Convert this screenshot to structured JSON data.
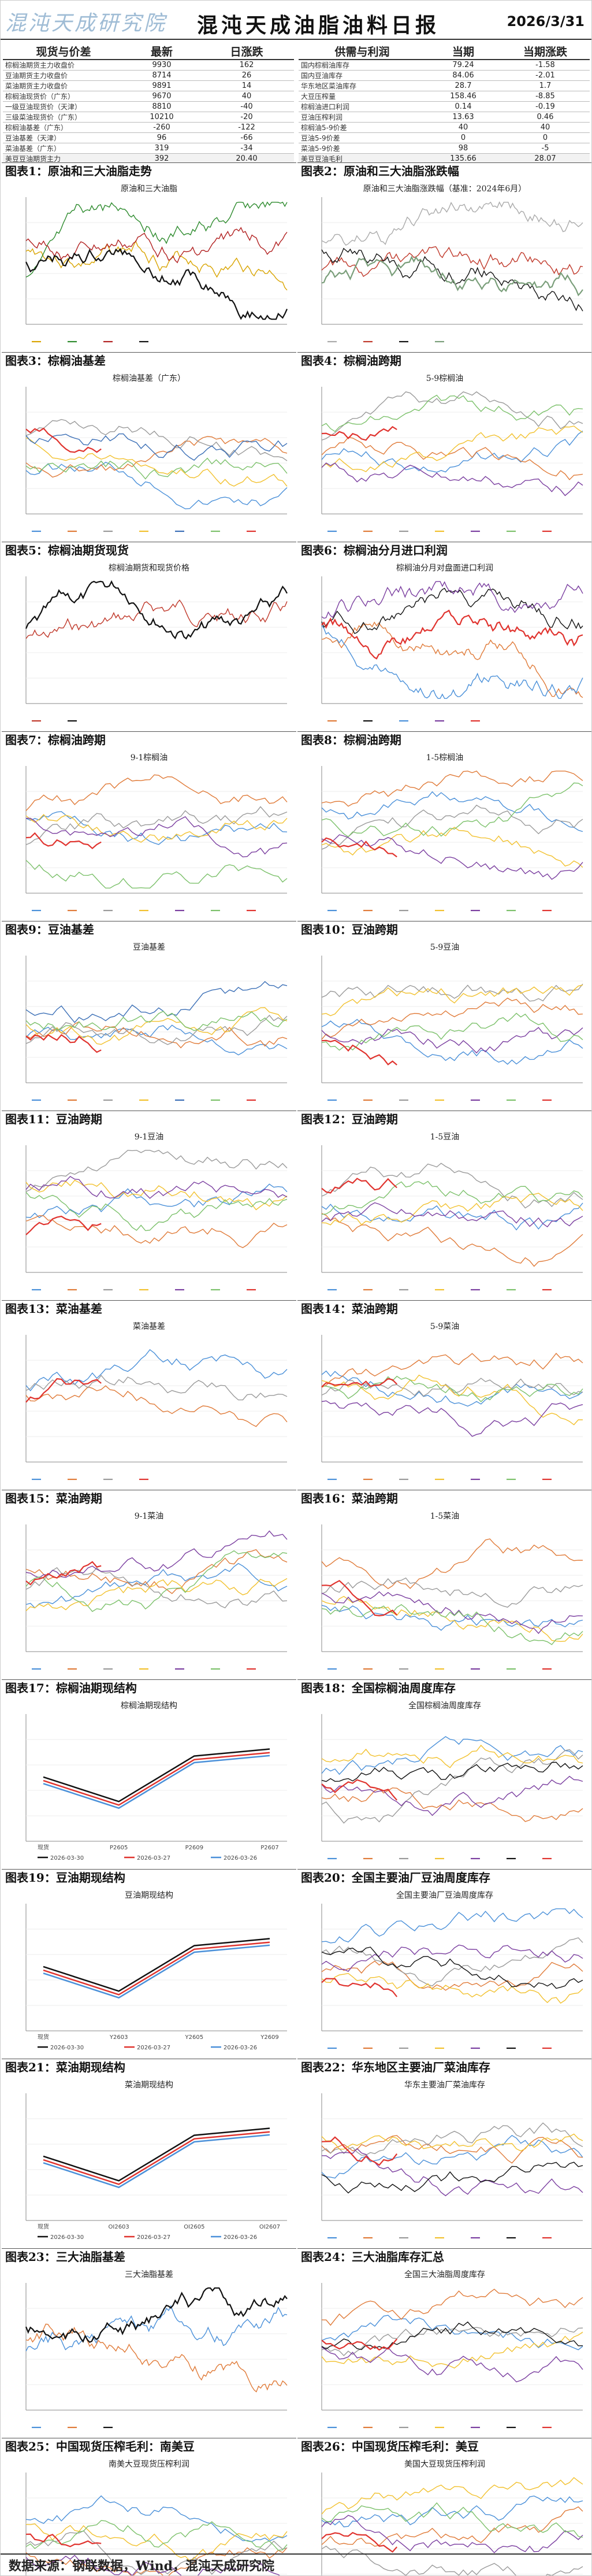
{
  "header": {
    "logo_text": "混沌天成研究院",
    "title": "混沌天成油脂油料日报",
    "date": "2026/3/31"
  },
  "price_table": {
    "headers": [
      "现货与价差",
      "最新",
      "日涨跌"
    ],
    "rows": [
      {
        "name": "棕榈油期货主力收盘价",
        "latest": "9930",
        "change": "162"
      },
      {
        "name": "豆油期货主力收盘价",
        "latest": "8714",
        "change": "26"
      },
      {
        "name": "菜油期货主力收盘价",
        "latest": "9891",
        "change": "14"
      },
      {
        "name": "棕榈油现货价（广东）",
        "latest": "9670",
        "change": "40"
      },
      {
        "name": "一级豆油现货价（天津）",
        "latest": "8810",
        "change": "-40"
      },
      {
        "name": "三级菜油现货价（广东）",
        "latest": "10210",
        "change": "-20"
      },
      {
        "name": "棕榈油基差（广东）",
        "latest": "-260",
        "change": "-122"
      },
      {
        "name": "豆油基差（天津）",
        "latest": "96",
        "change": "-66"
      },
      {
        "name": "菜油基差（广东）",
        "latest": "319",
        "change": "-34"
      },
      {
        "name": "美豆豆油期货主力",
        "latest": "392",
        "change": "20.40"
      }
    ]
  },
  "supply_table": {
    "headers": [
      "供需与利润",
      "当期",
      "当期涨跌"
    ],
    "rows": [
      {
        "name": "国内棕榈油库存",
        "current": "79.24",
        "change": "-1.58"
      },
      {
        "name": "国内豆油库存",
        "current": "84.06",
        "change": "-2.01"
      },
      {
        "name": "华东地区菜油库存",
        "current": "28.7",
        "change": "1.7"
      },
      {
        "name": "大豆压榨量",
        "current": "158.46",
        "change": "-8.85"
      },
      {
        "name": "棕榈油进口利润",
        "current": "0.14",
        "change": "-0.19"
      },
      {
        "name": "豆油压榨利润",
        "current": "13.63",
        "change": "0.46"
      },
      {
        "name": "棕榈油5-9价差",
        "current": "40",
        "change": "40"
      },
      {
        "name": "豆油5-9价差",
        "current": "0",
        "change": "0"
      },
      {
        "name": "菜油5-9价差",
        "current": "98",
        "change": "-5"
      },
      {
        "name": "美豆豆油毛利",
        "current": "135.66",
        "change": "28.07"
      }
    ]
  },
  "figures": [
    {
      "caption": "图表1：原油和三大油脂走势",
      "inner_title": "原油和三大油脂",
      "type": "multi",
      "colors": [
        "#d9a400",
        "#2e8b2e",
        "#b22222",
        "#111111"
      ]
    },
    {
      "caption": "图表2：原油和三大油脂涨跌幅",
      "inner_title": "原油和三大油脂涨跌幅（基准：2024年6月）",
      "type": "multi",
      "colors": [
        "#aaaaaa",
        "#c0392b",
        "#111111",
        "#7a9e7a"
      ]
    },
    {
      "caption": "图表3：棕榈油基差",
      "inner_title": "棕榈油基差（广东）",
      "type": "seasonal",
      "colors": [
        "#4a90d9",
        "#e07b39",
        "#9a9a9a",
        "#f2c12e",
        "#3b6fb6",
        "#7cc16b",
        "#e0332e"
      ]
    },
    {
      "caption": "图表4：棕榈油跨期",
      "inner_title": "5-9棕榈油",
      "type": "seasonal",
      "colors": [
        "#4a90d9",
        "#e07b39",
        "#9a9a9a",
        "#f2c12e",
        "#7b3fa0",
        "#7cc16b",
        "#e0332e"
      ]
    },
    {
      "caption": "图表5：棕榈油期货现货",
      "inner_title": "棕榈油期货和现货价格",
      "type": "pair",
      "colors": [
        "#c0392b",
        "#111111"
      ]
    },
    {
      "caption": "图表6：棕榈油分月进口利润",
      "inner_title": "棕榈油分月对盘面进口利润",
      "type": "multi",
      "colors": [
        "#e07b39",
        "#111111",
        "#4a90d9",
        "#7b3fa0",
        "#e0332e"
      ]
    },
    {
      "caption": "图表7：棕榈油跨期",
      "inner_title": "9-1棕榈油",
      "type": "seasonal",
      "colors": [
        "#4a90d9",
        "#e07b39",
        "#9a9a9a",
        "#f2c12e",
        "#7b3fa0",
        "#7cc16b",
        "#e0332e"
      ]
    },
    {
      "caption": "图表8：棕榈油跨期",
      "inner_title": "1-5棕榈油",
      "type": "seasonal",
      "colors": [
        "#4a90d9",
        "#e07b39",
        "#9a9a9a",
        "#f2c12e",
        "#7b3fa0",
        "#7cc16b",
        "#e0332e"
      ]
    },
    {
      "caption": "图表9：豆油基差",
      "inner_title": "豆油基差",
      "type": "seasonal",
      "colors": [
        "#4a90d9",
        "#e07b39",
        "#9a9a9a",
        "#f2c12e",
        "#3b6fb6",
        "#7cc16b",
        "#e0332e"
      ]
    },
    {
      "caption": "图表10：豆油跨期",
      "inner_title": "5-9豆油",
      "type": "seasonal",
      "colors": [
        "#4a90d9",
        "#e07b39",
        "#9a9a9a",
        "#f2c12e",
        "#7b3fa0",
        "#7cc16b",
        "#e0332e"
      ]
    },
    {
      "caption": "图表11：豆油跨期",
      "inner_title": "9-1豆油",
      "type": "seasonal",
      "colors": [
        "#4a90d9",
        "#e07b39",
        "#9a9a9a",
        "#f2c12e",
        "#7b3fa0",
        "#7cc16b",
        "#e0332e"
      ]
    },
    {
      "caption": "图表12：豆油跨期",
      "inner_title": "1-5豆油",
      "type": "seasonal",
      "colors": [
        "#4a90d9",
        "#e07b39",
        "#9a9a9a",
        "#f2c12e",
        "#7b3fa0",
        "#7cc16b",
        "#e0332e"
      ]
    },
    {
      "caption": "图表13：菜油基差",
      "inner_title": "菜油基差",
      "type": "seasonal",
      "colors": [
        "#4a90d9",
        "#e07b39",
        "#9a9a9a",
        "#e0332e"
      ]
    },
    {
      "caption": "图表14：菜油跨期",
      "inner_title": "5-9菜油",
      "type": "seasonal",
      "colors": [
        "#4a90d9",
        "#e07b39",
        "#9a9a9a",
        "#f2c12e",
        "#7b3fa0",
        "#7cc16b",
        "#e0332e"
      ]
    },
    {
      "caption": "图表15：菜油跨期",
      "inner_title": "9-1菜油",
      "type": "seasonal",
      "colors": [
        "#4a90d9",
        "#e07b39",
        "#9a9a9a",
        "#f2c12e",
        "#7b3fa0",
        "#7cc16b",
        "#e0332e"
      ]
    },
    {
      "caption": "图表16：菜油跨期",
      "inner_title": "1-5菜油",
      "type": "seasonal",
      "colors": [
        "#4a90d9",
        "#e07b39",
        "#9a9a9a",
        "#f2c12e",
        "#7b3fa0",
        "#7cc16b",
        "#e0332e"
      ]
    },
    {
      "caption": "图表17：棕榈油期现结构",
      "inner_title": "棕榈油期现结构",
      "type": "structure",
      "colors": [
        "#111111",
        "#e0332e",
        "#4a90d9"
      ],
      "xlabels": [
        "现货",
        "P2605",
        "P2609",
        "P2607"
      ],
      "legend": [
        "2026-03-30",
        "2026-03-27",
        "2026-03-26"
      ]
    },
    {
      "caption": "图表18：全国棕榈油周度库存",
      "inner_title": "全国棕榈油周度库存",
      "type": "seasonal",
      "colors": [
        "#4a90d9",
        "#e07b39",
        "#9a9a9a",
        "#f2c12e",
        "#7b3fa0",
        "#111111",
        "#e0332e"
      ]
    },
    {
      "caption": "图表19：豆油期现结构",
      "inner_title": "豆油期现结构",
      "type": "structure",
      "colors": [
        "#111111",
        "#e0332e",
        "#4a90d9"
      ],
      "xlabels": [
        "现货",
        "Y2603",
        "Y2605",
        "Y2609"
      ],
      "legend": [
        "2026-03-30",
        "2026-03-27",
        "2026-03-26"
      ]
    },
    {
      "caption": "图表20：全国主要油厂豆油周度库存",
      "inner_title": "全国主要油厂豆油周度库存",
      "type": "seasonal",
      "colors": [
        "#4a90d9",
        "#e07b39",
        "#9a9a9a",
        "#f2c12e",
        "#7b3fa0",
        "#111111",
        "#e0332e"
      ]
    },
    {
      "caption": "图表21：菜油期现结构",
      "inner_title": "菜油期现结构",
      "type": "structure",
      "colors": [
        "#111111",
        "#e0332e",
        "#4a90d9"
      ],
      "xlabels": [
        "现货",
        "OI2603",
        "OI2605",
        "OI2607"
      ],
      "legend": [
        "2026-03-30",
        "2026-03-27",
        "2026-03-26"
      ]
    },
    {
      "caption": "图表22：华东地区主要油厂菜油库存",
      "inner_title": "华东主要油厂菜油库存",
      "type": "seasonal",
      "colors": [
        "#4a90d9",
        "#e07b39",
        "#9a9a9a",
        "#f2c12e",
        "#7b3fa0",
        "#111111",
        "#e0332e"
      ]
    },
    {
      "caption": "图表23：三大油脂基差",
      "inner_title": "三大油脂基差",
      "type": "multi",
      "colors": [
        "#4a90d9",
        "#e07b39",
        "#111111"
      ]
    },
    {
      "caption": "图表24：三大油脂库存汇总",
      "inner_title": "全国三大油脂周度库存",
      "type": "seasonal",
      "colors": [
        "#4a90d9",
        "#e07b39",
        "#9a9a9a",
        "#f2c12e",
        "#7b3fa0",
        "#111111",
        "#e0332e"
      ]
    },
    {
      "caption": "图表25：中国现货压榨毛利：南美豆",
      "inner_title": "南美大豆现货压榨利润",
      "type": "seasonal",
      "colors": [
        "#4a90d9",
        "#e07b39",
        "#9a9a9a",
        "#f2c12e",
        "#7b3fa0",
        "#7cc16b",
        "#e0332e"
      ]
    },
    {
      "caption": "图表26：中国现货压榨毛利：美豆",
      "inner_title": "美国大豆现货压榨利润",
      "type": "seasonal",
      "colors": [
        "#4a90d9",
        "#e07b39",
        "#9a9a9a",
        "#f2c12e",
        "#7b3fa0",
        "#7cc16b",
        "#e0332e"
      ]
    }
  ],
  "footer": {
    "source": "数据来源：钢联数据，Wind，混沌天成研究院"
  }
}
